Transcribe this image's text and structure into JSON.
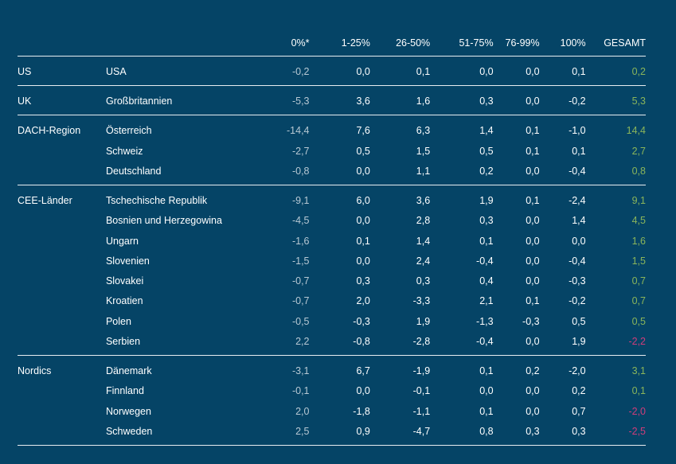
{
  "chart_data": {
    "type": "table",
    "columns": [
      "0%*",
      "1-25%",
      "26-50%",
      "51-75%",
      "76-99%",
      "100%",
      "GESAMT"
    ],
    "groups": [
      {
        "region": "US",
        "rows": [
          {
            "code": "US",
            "country": "USA",
            "values": [
              "-0,2",
              "0,0",
              "0,1",
              "0,0",
              "0,0",
              "0,1",
              "0,2"
            ],
            "total_sign": "pos"
          }
        ]
      },
      {
        "region": "UK",
        "rows": [
          {
            "code": "UK",
            "country": "Großbritannien",
            "values": [
              "-5,3",
              "3,6",
              "1,6",
              "0,3",
              "0,0",
              "-0,2",
              "5,3"
            ],
            "total_sign": "pos"
          }
        ]
      },
      {
        "region": "DACH-Region",
        "rows": [
          {
            "country": "Österreich",
            "values": [
              "-14,4",
              "7,6",
              "6,3",
              "1,4",
              "0,1",
              "-1,0",
              "14,4"
            ],
            "total_sign": "pos"
          },
          {
            "country": "Schweiz",
            "values": [
              "-2,7",
              "0,5",
              "1,5",
              "0,5",
              "0,1",
              "0,1",
              "2,7"
            ],
            "total_sign": "pos"
          },
          {
            "country": "Deutschland",
            "values": [
              "-0,8",
              "0,0",
              "1,1",
              "0,2",
              "0,0",
              "-0,4",
              "0,8"
            ],
            "total_sign": "pos"
          }
        ]
      },
      {
        "region": "CEE-Länder",
        "rows": [
          {
            "country": "Tschechische Republik",
            "values": [
              "-9,1",
              "6,0",
              "3,6",
              "1,9",
              "0,1",
              "-2,4",
              "9,1"
            ],
            "total_sign": "pos"
          },
          {
            "country": "Bosnien und Herzegowina",
            "values": [
              "-4,5",
              "0,0",
              "2,8",
              "0,3",
              "0,0",
              "1,4",
              "4,5"
            ],
            "total_sign": "pos"
          },
          {
            "country": "Ungarn",
            "values": [
              "-1,6",
              "0,1",
              "1,4",
              "0,1",
              "0,0",
              "0,0",
              "1,6"
            ],
            "total_sign": "pos"
          },
          {
            "country": "Slovenien",
            "values": [
              "-1,5",
              "0,0",
              "2,4",
              "-0,4",
              "0,0",
              "-0,4",
              "1,5"
            ],
            "total_sign": "pos"
          },
          {
            "country": "Slovakei",
            "values": [
              "-0,7",
              "0,3",
              "0,3",
              "0,4",
              "0,0",
              "-0,3",
              "0,7"
            ],
            "total_sign": "pos"
          },
          {
            "country": "Kroatien",
            "values": [
              "-0,7",
              "2,0",
              "-3,3",
              "2,1",
              "0,1",
              "-0,2",
              "0,7"
            ],
            "total_sign": "pos"
          },
          {
            "country": "Polen",
            "values": [
              "-0,5",
              "-0,3",
              "1,9",
              "-1,3",
              "-0,3",
              "0,5",
              "0,5"
            ],
            "total_sign": "pos"
          },
          {
            "country": "Serbien",
            "values": [
              "2,2",
              "-0,8",
              "-2,8",
              "-0,4",
              "0,0",
              "1,9",
              "-2,2"
            ],
            "total_sign": "neg"
          }
        ]
      },
      {
        "region": "Nordics",
        "rows": [
          {
            "country": "Dänemark",
            "values": [
              "-3,1",
              "6,7",
              "-1,9",
              "0,1",
              "0,2",
              "-2,0",
              "3,1"
            ],
            "total_sign": "pos"
          },
          {
            "country": "Finnland",
            "values": [
              "-0,1",
              "0,0",
              "-0,1",
              "0,0",
              "0,0",
              "0,2",
              "0,1"
            ],
            "total_sign": "pos"
          },
          {
            "country": "Norwegen",
            "values": [
              "2,0",
              "-1,8",
              "-1,1",
              "0,1",
              "0,0",
              "0,7",
              "-2,0"
            ],
            "total_sign": "neg"
          },
          {
            "country": "Schweden",
            "values": [
              "2,5",
              "0,9",
              "-4,7",
              "0,8",
              "0,3",
              "0,3",
              "-2,5"
            ],
            "total_sign": "neg"
          }
        ]
      }
    ]
  },
  "colors": {
    "background": "#054466",
    "text": "#ffffff",
    "muted": "#b7c8d3",
    "positive_total": "#8ab55b",
    "negative_total": "#cf3d7a",
    "rule": "#e8eef2"
  }
}
